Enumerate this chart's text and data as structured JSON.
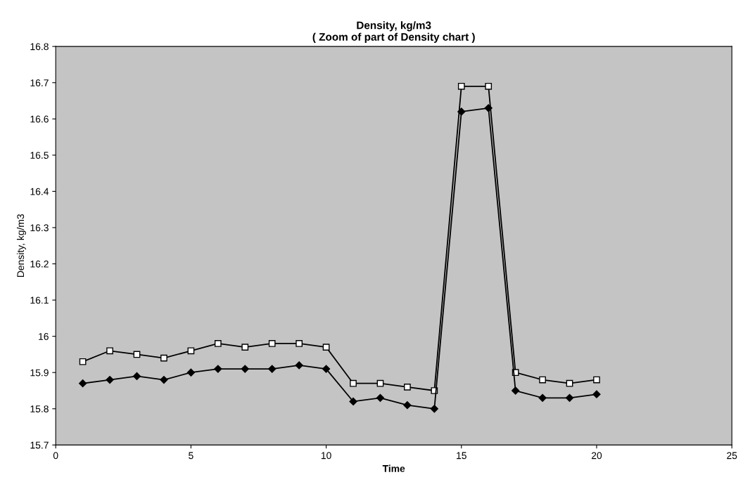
{
  "chart_data": {
    "type": "line",
    "title": "Density, kg/m3\n( Zoom of part of Density chart )",
    "xlabel": "Time",
    "ylabel": "Density, kg/m3",
    "x": [
      1,
      2,
      3,
      4,
      5,
      6,
      7,
      8,
      9,
      10,
      11,
      12,
      13,
      14,
      15,
      16,
      17,
      18,
      19,
      20
    ],
    "series": [
      {
        "color": "#000000",
        "marker": "square",
        "values": [
          15.93,
          15.96,
          15.95,
          15.94,
          15.96,
          15.98,
          15.97,
          15.98,
          15.98,
          15.97,
          15.87,
          15.87,
          15.86,
          15.85,
          16.69,
          16.69,
          15.9,
          15.88,
          15.87,
          15.88
        ]
      },
      {
        "color": "#000000",
        "marker": "diamond",
        "values": [
          15.87,
          15.88,
          15.89,
          15.88,
          15.9,
          15.91,
          15.91,
          15.91,
          15.92,
          15.91,
          15.82,
          15.83,
          15.81,
          15.8,
          16.62,
          16.63,
          15.85,
          15.83,
          15.83,
          15.84
        ]
      }
    ],
    "xlim": [
      0,
      25
    ],
    "xticks": [
      0,
      5,
      10,
      15,
      20,
      25
    ],
    "ylim": [
      15.7,
      16.8
    ],
    "yticks": [
      15.7,
      15.8,
      15.9,
      16,
      16.1,
      16.2,
      16.3,
      16.4,
      16.5,
      16.6,
      16.7,
      16.8
    ],
    "grid": false,
    "legend": false
  }
}
